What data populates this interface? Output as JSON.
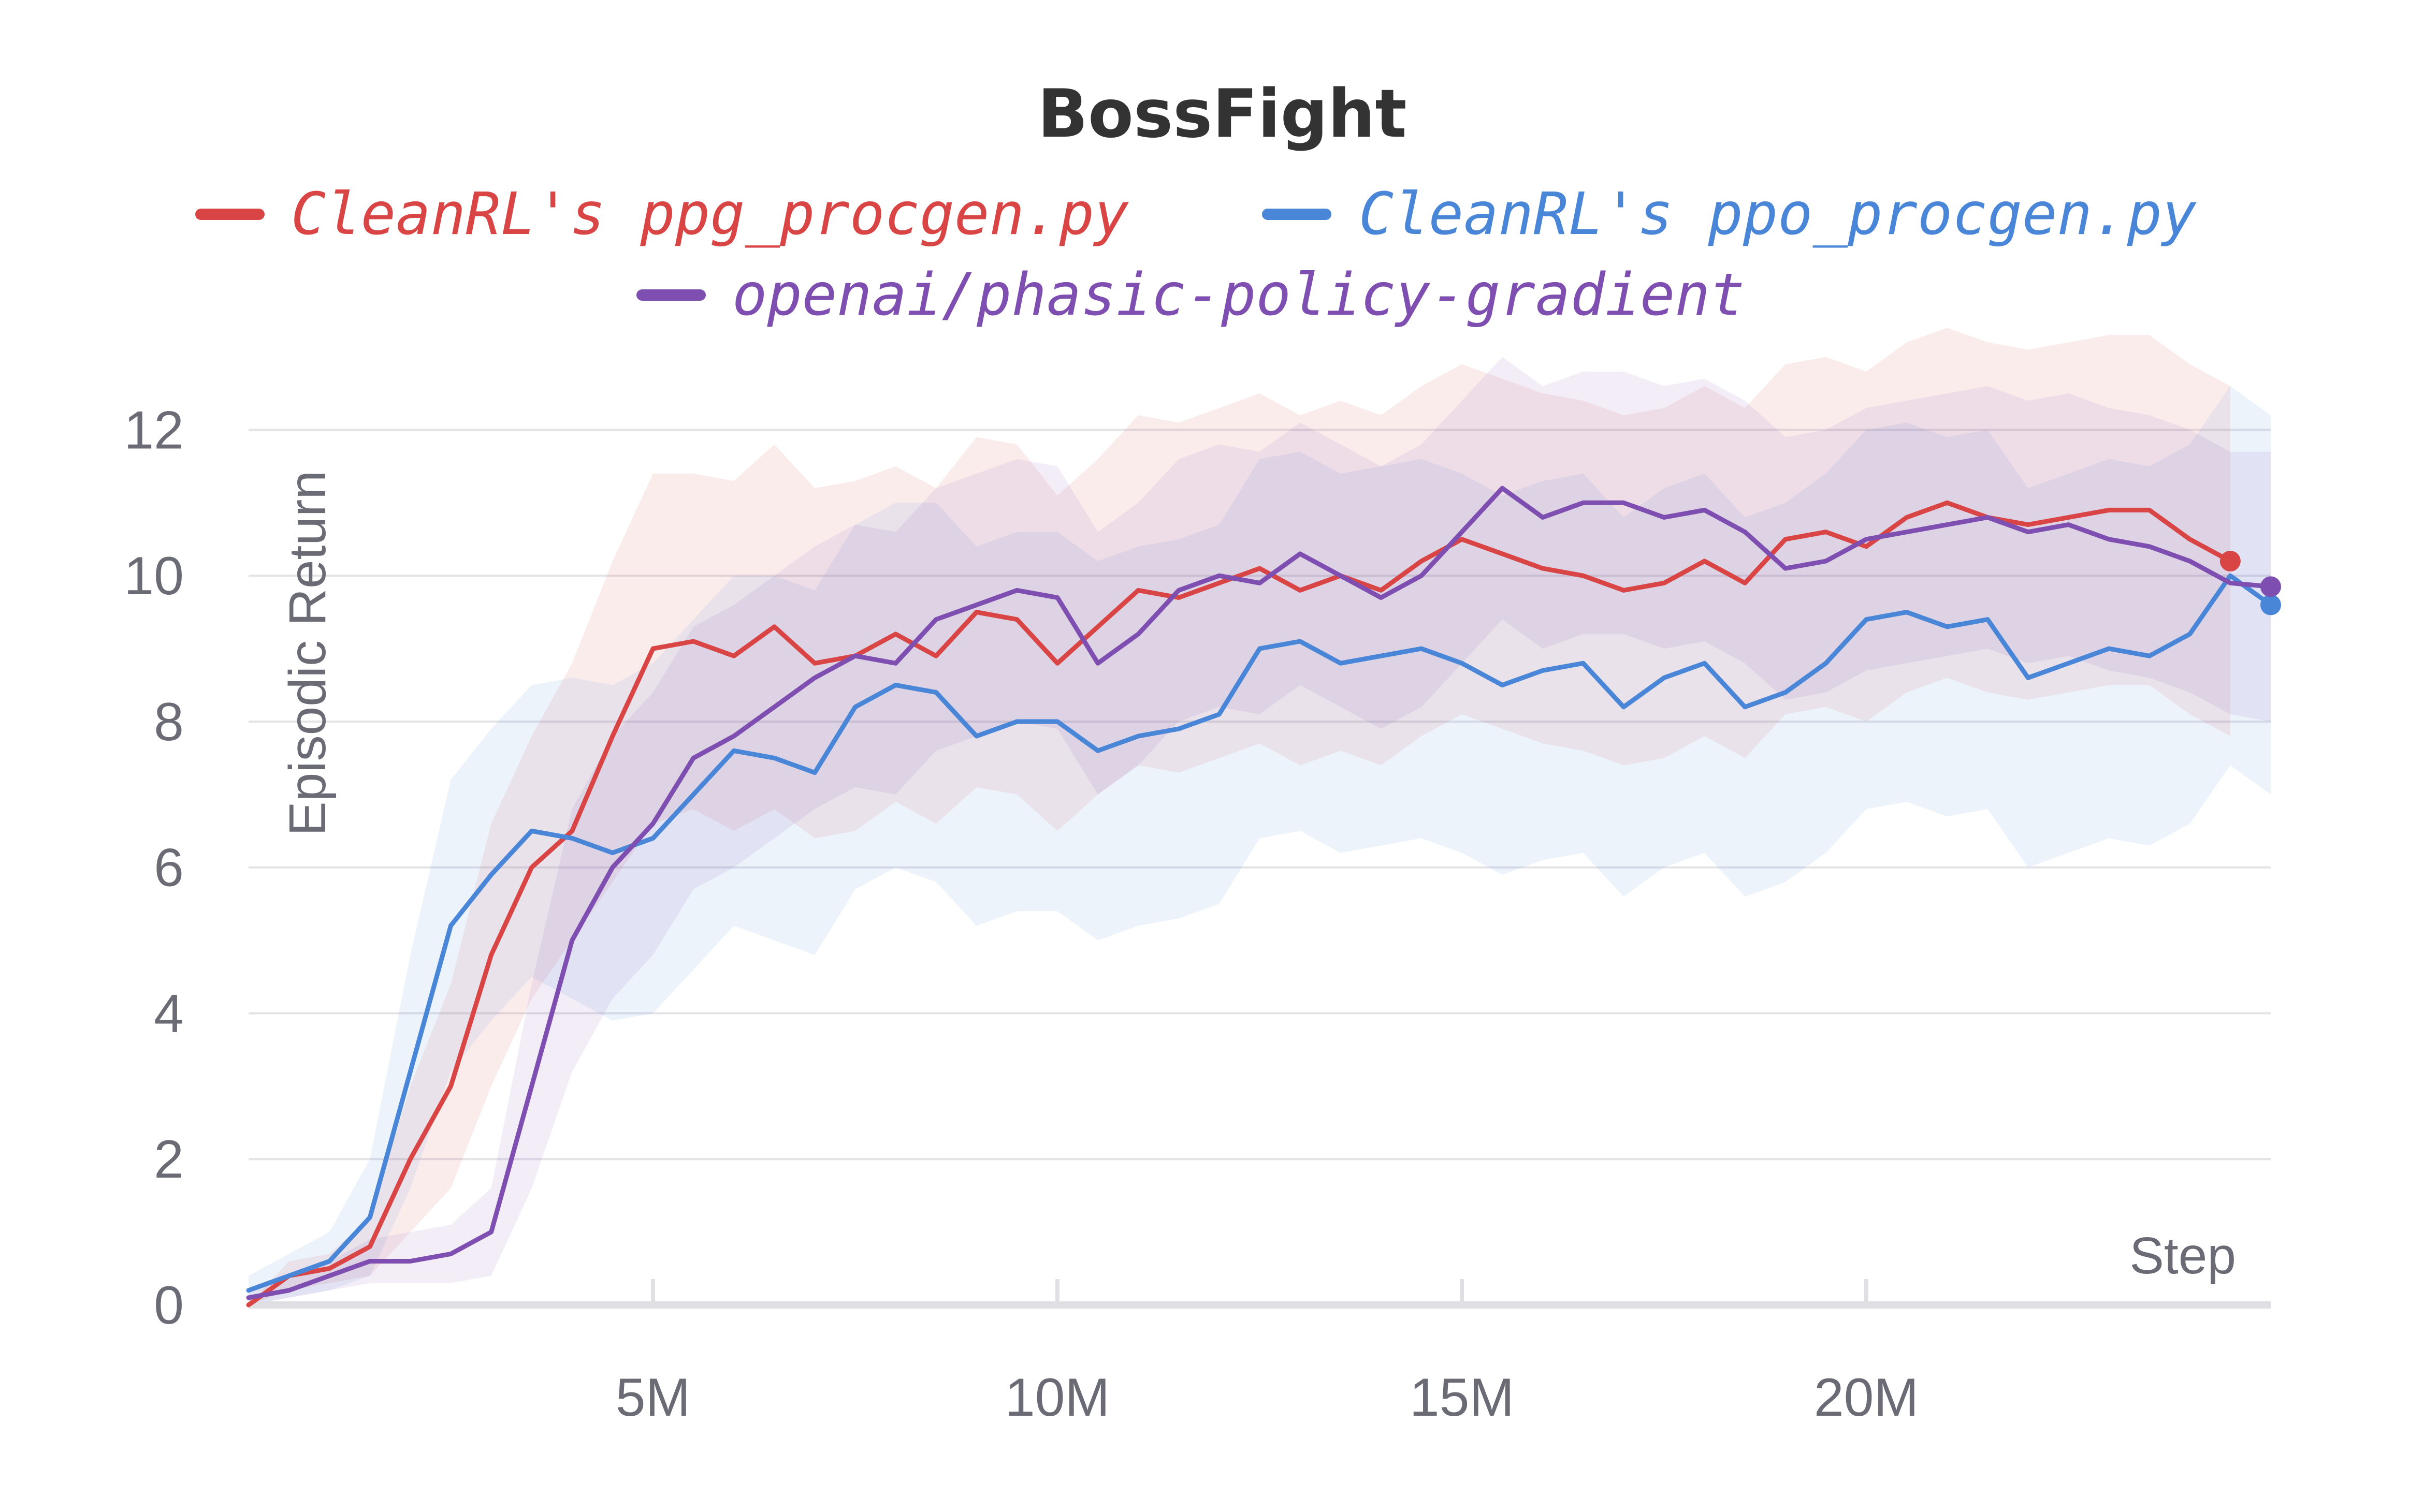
{
  "chart_data": {
    "type": "line",
    "title": "BossFight",
    "xlabel": "Step",
    "ylabel": "Episodic Return",
    "xlim": [
      0,
      25000000
    ],
    "ylim": [
      0,
      12.5
    ],
    "x_ticks": [
      5000000,
      10000000,
      15000000,
      20000000
    ],
    "x_tick_labels": [
      "5M",
      "10M",
      "15M",
      "20M"
    ],
    "y_ticks": [
      0,
      2,
      4,
      6,
      8,
      10,
      12
    ],
    "y_tick_labels": [
      "0",
      "2",
      "4",
      "6",
      "8",
      "10",
      "12"
    ],
    "grid": true,
    "legend_placement": "top",
    "series": [
      {
        "name": "CleanRL's ppg_procgen.py",
        "color": "#d94545",
        "x": [
          0,
          500000,
          1000000,
          1500000,
          2000000,
          2500000,
          3000000,
          3500000,
          4000000,
          4500000,
          5000000,
          5500000,
          6000000,
          6500000,
          7000000,
          7500000,
          8000000,
          8500000,
          9000000,
          9500000,
          10000000,
          10500000,
          11000000,
          11500000,
          12000000,
          12500000,
          13000000,
          13500000,
          14000000,
          14500000,
          15000000,
          15500000,
          16000000,
          16500000,
          17000000,
          17500000,
          18000000,
          18500000,
          19000000,
          19500000,
          20000000,
          20500000,
          21000000,
          21500000,
          22000000,
          22500000,
          23000000,
          23500000,
          24000000,
          24500000
        ],
        "y": [
          0.0,
          0.4,
          0.5,
          0.8,
          2.0,
          3.0,
          4.8,
          6.0,
          6.5,
          7.8,
          9.0,
          9.1,
          8.9,
          9.3,
          8.8,
          8.9,
          9.2,
          8.9,
          9.5,
          9.4,
          8.8,
          9.3,
          9.8,
          9.7,
          9.9,
          10.1,
          9.8,
          10.0,
          9.8,
          10.2,
          10.5,
          10.3,
          10.1,
          10.0,
          9.8,
          9.9,
          10.2,
          9.9,
          10.5,
          10.6,
          10.4,
          10.8,
          11.0,
          10.8,
          10.7,
          10.8,
          10.9,
          10.9,
          10.5,
          10.2
        ],
        "y_lower": [
          0.0,
          0.2,
          0.3,
          0.4,
          1.0,
          1.6,
          3.0,
          4.2,
          5.0,
          5.8,
          6.6,
          6.8,
          6.5,
          6.8,
          6.4,
          6.5,
          6.9,
          6.6,
          7.1,
          7.0,
          6.5,
          7.0,
          7.4,
          7.3,
          7.5,
          7.7,
          7.4,
          7.6,
          7.4,
          7.8,
          8.1,
          7.9,
          7.7,
          7.6,
          7.4,
          7.5,
          7.8,
          7.5,
          8.1,
          8.2,
          8.0,
          8.4,
          8.6,
          8.4,
          8.3,
          8.4,
          8.5,
          8.5,
          8.1,
          7.8
        ],
        "y_upper": [
          0.0,
          0.6,
          0.7,
          1.2,
          3.0,
          4.4,
          6.6,
          7.8,
          8.8,
          10.2,
          11.4,
          11.4,
          11.3,
          11.8,
          11.2,
          11.3,
          11.5,
          11.2,
          11.9,
          11.8,
          11.1,
          11.6,
          12.2,
          12.1,
          12.3,
          12.5,
          12.2,
          12.4,
          12.2,
          12.6,
          12.9,
          12.7,
          12.5,
          12.4,
          12.2,
          12.3,
          12.6,
          12.3,
          12.9,
          13.0,
          12.8,
          13.2,
          13.4,
          13.2,
          13.1,
          13.2,
          13.3,
          13.3,
          12.9,
          12.6
        ]
      },
      {
        "name": "CleanRL's ppo_procgen.py",
        "color": "#4a86d8",
        "x": [
          0,
          500000,
          1000000,
          1500000,
          2000000,
          2500000,
          3000000,
          3500000,
          4000000,
          4500000,
          5000000,
          5500000,
          6000000,
          6500000,
          7000000,
          7500000,
          8000000,
          8500000,
          9000000,
          9500000,
          10000000,
          10500000,
          11000000,
          11500000,
          12000000,
          12500000,
          13000000,
          13500000,
          14000000,
          14500000,
          15000000,
          15500000,
          16000000,
          16500000,
          17000000,
          17500000,
          18000000,
          18500000,
          19000000,
          19500000,
          20000000,
          20500000,
          21000000,
          21500000,
          22000000,
          22500000,
          23000000,
          23500000,
          24000000,
          24500000,
          25000000
        ],
        "y": [
          0.2,
          0.4,
          0.6,
          1.2,
          3.2,
          5.2,
          5.9,
          6.5,
          6.4,
          6.2,
          6.4,
          7.0,
          7.6,
          7.5,
          7.3,
          8.2,
          8.5,
          8.4,
          7.8,
          8.0,
          8.0,
          7.6,
          7.8,
          7.9,
          8.1,
          9.0,
          9.1,
          8.8,
          8.9,
          9.0,
          8.8,
          8.5,
          8.7,
          8.8,
          8.2,
          8.6,
          8.8,
          8.2,
          8.4,
          8.8,
          9.4,
          9.5,
          9.3,
          9.4,
          8.6,
          8.8,
          9.0,
          8.9,
          9.2,
          10.0,
          9.6
        ],
        "y_lower": [
          0.0,
          0.1,
          0.2,
          0.4,
          1.6,
          3.2,
          3.9,
          4.5,
          4.2,
          3.9,
          4.0,
          4.6,
          5.2,
          5.0,
          4.8,
          5.7,
          6.0,
          5.8,
          5.2,
          5.4,
          5.4,
          5.0,
          5.2,
          5.3,
          5.5,
          6.4,
          6.5,
          6.2,
          6.3,
          6.4,
          6.2,
          5.9,
          6.1,
          6.2,
          5.6,
          6.0,
          6.2,
          5.6,
          5.8,
          6.2,
          6.8,
          6.9,
          6.7,
          6.8,
          6.0,
          6.2,
          6.4,
          6.3,
          6.6,
          7.4,
          7.0
        ],
        "y_upper": [
          0.4,
          0.7,
          1.0,
          2.0,
          4.8,
          7.2,
          7.9,
          8.5,
          8.6,
          8.5,
          8.8,
          9.4,
          10.0,
          10.0,
          9.8,
          10.7,
          11.0,
          11.0,
          10.4,
          10.6,
          10.6,
          10.2,
          10.4,
          10.5,
          10.7,
          11.6,
          11.7,
          11.4,
          11.5,
          11.6,
          11.4,
          11.1,
          11.3,
          11.4,
          10.8,
          11.2,
          11.4,
          10.8,
          11.0,
          11.4,
          12.0,
          12.1,
          11.9,
          12.0,
          11.2,
          11.4,
          11.6,
          11.5,
          11.8,
          12.6,
          12.2
        ]
      },
      {
        "name": "openai/phasic-policy-gradient",
        "color": "#7e4fb0",
        "x": [
          0,
          500000,
          1000000,
          1500000,
          2000000,
          2500000,
          3000000,
          3500000,
          4000000,
          4500000,
          5000000,
          5500000,
          6000000,
          6500000,
          7000000,
          7500000,
          8000000,
          8500000,
          9000000,
          9500000,
          10000000,
          10500000,
          11000000,
          11500000,
          12000000,
          12500000,
          13000000,
          13500000,
          14000000,
          14500000,
          15000000,
          15500000,
          16000000,
          16500000,
          17000000,
          17500000,
          18000000,
          18500000,
          19000000,
          19500000,
          20000000,
          20500000,
          21000000,
          21500000,
          22000000,
          22500000,
          23000000,
          23500000,
          24000000,
          24500000,
          25000000
        ],
        "y": [
          0.1,
          0.2,
          0.4,
          0.6,
          0.6,
          0.7,
          1.0,
          3.0,
          5.0,
          6.0,
          6.6,
          7.5,
          7.8,
          8.2,
          8.6,
          8.9,
          8.8,
          9.4,
          9.6,
          9.8,
          9.7,
          8.8,
          9.2,
          9.8,
          10.0,
          9.9,
          10.3,
          10.0,
          9.7,
          10.0,
          10.6,
          11.2,
          10.8,
          11.0,
          11.0,
          10.8,
          10.9,
          10.6,
          10.1,
          10.2,
          10.5,
          10.6,
          10.7,
          10.8,
          10.6,
          10.7,
          10.5,
          10.4,
          10.2,
          9.9,
          9.85
        ],
        "y_lower": [
          0.0,
          0.1,
          0.2,
          0.3,
          0.3,
          0.3,
          0.4,
          1.6,
          3.2,
          4.2,
          4.8,
          5.7,
          6.0,
          6.4,
          6.8,
          7.1,
          7.0,
          7.6,
          7.8,
          8.0,
          7.9,
          7.0,
          7.4,
          8.0,
          8.2,
          8.1,
          8.5,
          8.2,
          7.9,
          8.2,
          8.8,
          9.4,
          9.0,
          9.2,
          9.2,
          9.0,
          9.1,
          8.8,
          8.3,
          8.4,
          8.7,
          8.8,
          8.9,
          9.0,
          8.8,
          8.9,
          8.7,
          8.6,
          8.4,
          8.1,
          8.0
        ],
        "y_upper": [
          0.2,
          0.4,
          0.6,
          0.9,
          1.0,
          1.1,
          1.6,
          4.4,
          6.8,
          7.8,
          8.4,
          9.3,
          9.6,
          10.0,
          10.4,
          10.7,
          10.6,
          11.2,
          11.4,
          11.6,
          11.5,
          10.6,
          11.0,
          11.6,
          11.8,
          11.7,
          12.1,
          11.8,
          11.5,
          11.8,
          12.4,
          13.0,
          12.6,
          12.8,
          12.8,
          12.6,
          12.7,
          12.4,
          11.9,
          12.0,
          12.3,
          12.4,
          12.5,
          12.6,
          12.4,
          12.5,
          12.3,
          12.2,
          12.0,
          11.7,
          11.7
        ]
      }
    ]
  }
}
